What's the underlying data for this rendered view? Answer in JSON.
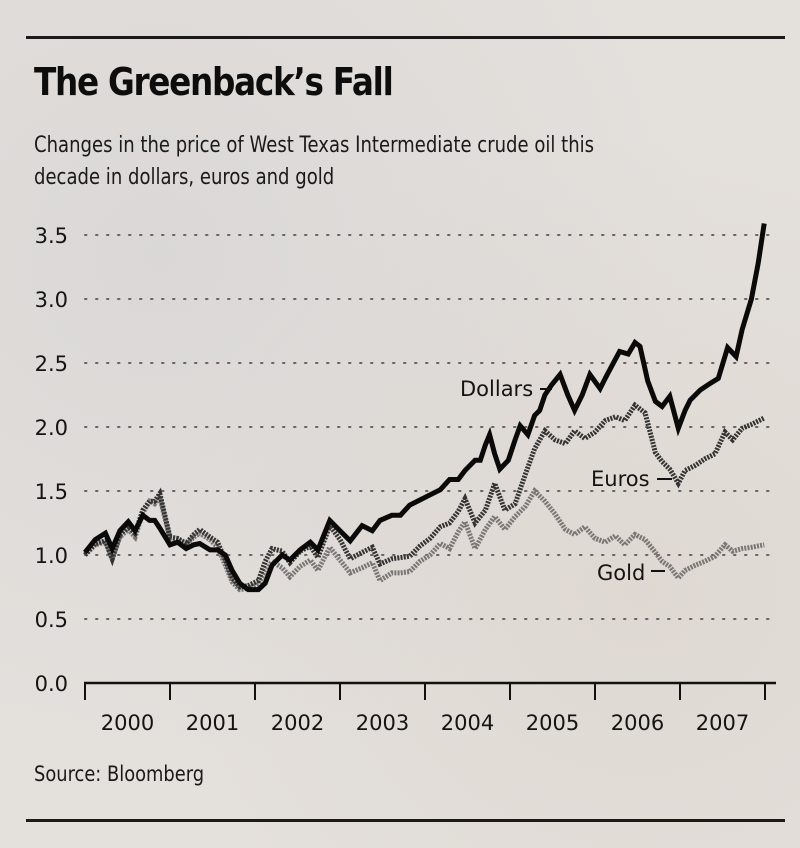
{
  "title": "The Greenback’s Fall",
  "subtitle_line1": "Changes in the price of West Texas Intermediate crude oil this",
  "subtitle_line2": "decade in dollars, euros and gold",
  "source": "Source: Bloomberg",
  "chart_data": {
    "type": "line",
    "title": "The Greenback’s Fall",
    "subtitle": "Changes in the price of West Texas Intermediate crude oil this decade in dollars, euros and gold",
    "xlabel": "",
    "ylabel": "",
    "ylim": [
      0,
      3.5
    ],
    "xlim": [
      2000.0,
      2008.0
    ],
    "yticks": [
      "0.0",
      "0.5",
      "1.0",
      "1.5",
      "2.0",
      "2.5",
      "3.0",
      "3.5"
    ],
    "ytick_values": [
      0,
      0.5,
      1.0,
      1.5,
      2.0,
      2.5,
      3.0,
      3.5
    ],
    "xticks": [
      "2000",
      "2001",
      "2002",
      "2003",
      "2004",
      "2005",
      "2006",
      "2007"
    ],
    "grid": "horizontal dotted",
    "legend": "inline labels",
    "series": [
      {
        "name": "Dollars",
        "label": "Dollars",
        "style": "thick-black",
        "color": "#0a0a0a",
        "x": [
          2000.0,
          2000.12,
          2000.24,
          2000.32,
          2000.41,
          2000.51,
          2000.59,
          2000.68,
          2000.76,
          2000.82,
          2000.88,
          2001.0,
          2001.09,
          2001.19,
          2001.28,
          2001.35,
          2001.47,
          2001.56,
          2001.65,
          2001.73,
          2001.82,
          2001.92,
          2002.04,
          2002.12,
          2002.2,
          2002.32,
          2002.41,
          2002.53,
          2002.65,
          2002.74,
          2002.88,
          2003.0,
          2003.12,
          2003.26,
          2003.38,
          2003.47,
          2003.61,
          2003.71,
          2003.82,
          2003.94,
          2004.06,
          2004.18,
          2004.29,
          2004.39,
          2004.47,
          2004.59,
          2004.65,
          2004.71,
          2004.76,
          2004.82,
          2004.88,
          2004.98,
          2005.06,
          2005.12,
          2005.21,
          2005.29,
          2005.35,
          2005.41,
          2005.49,
          2005.59,
          2005.68,
          2005.76,
          2005.85,
          2005.94,
          2006.06,
          2006.12,
          2006.2,
          2006.29,
          2006.39,
          2006.47,
          2006.53,
          2006.62,
          2006.71,
          2006.79,
          2006.88,
          2006.98,
          2007.06,
          2007.12,
          2007.24,
          2007.33,
          2007.45,
          2007.56,
          2007.66,
          2007.73,
          2007.84,
          2007.92,
          2007.99
        ],
        "y": [
          1.02,
          1.12,
          1.17,
          1.05,
          1.19,
          1.26,
          1.19,
          1.31,
          1.27,
          1.27,
          1.21,
          1.08,
          1.1,
          1.05,
          1.08,
          1.09,
          1.04,
          1.04,
          1.0,
          0.88,
          0.78,
          0.73,
          0.73,
          0.78,
          0.92,
          1.0,
          0.96,
          1.04,
          1.1,
          1.04,
          1.27,
          1.19,
          1.11,
          1.23,
          1.19,
          1.27,
          1.31,
          1.31,
          1.39,
          1.43,
          1.47,
          1.51,
          1.59,
          1.59,
          1.66,
          1.74,
          1.74,
          1.86,
          1.94,
          1.79,
          1.67,
          1.74,
          1.9,
          2.01,
          1.94,
          2.09,
          2.13,
          2.25,
          2.33,
          2.41,
          2.25,
          2.13,
          2.25,
          2.41,
          2.3,
          2.38,
          2.48,
          2.59,
          2.57,
          2.66,
          2.63,
          2.36,
          2.2,
          2.16,
          2.24,
          1.99,
          2.13,
          2.21,
          2.29,
          2.33,
          2.38,
          2.62,
          2.55,
          2.76,
          3.0,
          3.28,
          3.59
        ]
      },
      {
        "name": "Euros",
        "label": "Euros",
        "style": "medium-dark-gray hatched",
        "color": "#333333",
        "x": [
          2000.0,
          2000.12,
          2000.24,
          2000.32,
          2000.41,
          2000.51,
          2000.59,
          2000.68,
          2000.76,
          2000.82,
          2000.88,
          2001.0,
          2001.09,
          2001.19,
          2001.28,
          2001.35,
          2001.47,
          2001.56,
          2001.65,
          2001.73,
          2001.82,
          2001.92,
          2002.04,
          2002.12,
          2002.2,
          2002.32,
          2002.41,
          2002.53,
          2002.65,
          2002.74,
          2002.88,
          2003.0,
          2003.12,
          2003.26,
          2003.38,
          2003.47,
          2003.61,
          2003.71,
          2003.82,
          2003.94,
          2004.06,
          2004.18,
          2004.29,
          2004.39,
          2004.47,
          2004.59,
          2004.71,
          2004.82,
          2004.94,
          2005.06,
          2005.18,
          2005.29,
          2005.41,
          2005.53,
          2005.65,
          2005.76,
          2005.88,
          2006.0,
          2006.12,
          2006.24,
          2006.35,
          2006.47,
          2006.59,
          2006.71,
          2006.79,
          2006.88,
          2006.98,
          2007.06,
          2007.18,
          2007.29,
          2007.41,
          2007.53,
          2007.62,
          2007.73,
          2007.84,
          2007.99
        ],
        "y": [
          1.0,
          1.09,
          1.11,
          0.97,
          1.16,
          1.22,
          1.17,
          1.35,
          1.42,
          1.42,
          1.48,
          1.14,
          1.13,
          1.09,
          1.16,
          1.2,
          1.14,
          1.1,
          0.96,
          0.82,
          0.75,
          0.76,
          0.8,
          0.95,
          1.05,
          1.03,
          0.94,
          1.03,
          1.07,
          0.98,
          1.23,
          1.12,
          0.97,
          1.02,
          1.06,
          0.93,
          0.97,
          0.98,
          0.99,
          1.07,
          1.13,
          1.22,
          1.25,
          1.34,
          1.44,
          1.25,
          1.35,
          1.56,
          1.35,
          1.4,
          1.63,
          1.83,
          1.97,
          1.9,
          1.87,
          1.97,
          1.91,
          1.96,
          2.05,
          2.08,
          2.05,
          2.17,
          2.11,
          1.8,
          1.73,
          1.67,
          1.56,
          1.66,
          1.7,
          1.75,
          1.79,
          1.96,
          1.9,
          1.99,
          2.02,
          2.07
        ]
      },
      {
        "name": "Gold",
        "label": "Gold",
        "style": "light-gray hatched",
        "color": "#7a7676",
        "x": [
          2000.0,
          2000.12,
          2000.24,
          2000.32,
          2000.41,
          2000.51,
          2000.59,
          2000.68,
          2000.76,
          2000.82,
          2000.88,
          2001.0,
          2001.09,
          2001.19,
          2001.28,
          2001.35,
          2001.47,
          2001.56,
          2001.65,
          2001.73,
          2001.82,
          2001.92,
          2002.04,
          2002.12,
          2002.2,
          2002.32,
          2002.41,
          2002.53,
          2002.65,
          2002.74,
          2002.88,
          2003.0,
          2003.12,
          2003.26,
          2003.38,
          2003.47,
          2003.61,
          2003.71,
          2003.82,
          2003.94,
          2004.06,
          2004.18,
          2004.29,
          2004.39,
          2004.47,
          2004.59,
          2004.71,
          2004.82,
          2004.94,
          2005.06,
          2005.18,
          2005.29,
          2005.41,
          2005.53,
          2005.65,
          2005.76,
          2005.88,
          2006.0,
          2006.12,
          2006.24,
          2006.35,
          2006.47,
          2006.59,
          2006.71,
          2006.79,
          2006.88,
          2006.98,
          2007.06,
          2007.18,
          2007.29,
          2007.41,
          2007.53,
          2007.62,
          2007.73,
          2007.84,
          2007.99
        ],
        "y": [
          1.0,
          1.08,
          1.1,
          0.97,
          1.14,
          1.2,
          1.14,
          1.33,
          1.42,
          1.4,
          1.45,
          1.13,
          1.12,
          1.08,
          1.14,
          1.17,
          1.12,
          1.06,
          0.92,
          0.79,
          0.73,
          0.74,
          0.77,
          0.88,
          0.95,
          0.9,
          0.83,
          0.91,
          0.96,
          0.88,
          1.06,
          0.96,
          0.86,
          0.9,
          0.94,
          0.8,
          0.86,
          0.86,
          0.87,
          0.95,
          1.0,
          1.09,
          1.05,
          1.18,
          1.26,
          1.05,
          1.2,
          1.3,
          1.2,
          1.3,
          1.38,
          1.5,
          1.42,
          1.32,
          1.2,
          1.16,
          1.22,
          1.13,
          1.1,
          1.15,
          1.08,
          1.16,
          1.12,
          1.02,
          0.95,
          0.91,
          0.82,
          0.88,
          0.92,
          0.95,
          0.99,
          1.08,
          1.03,
          1.05,
          1.06,
          1.08
        ]
      }
    ]
  }
}
